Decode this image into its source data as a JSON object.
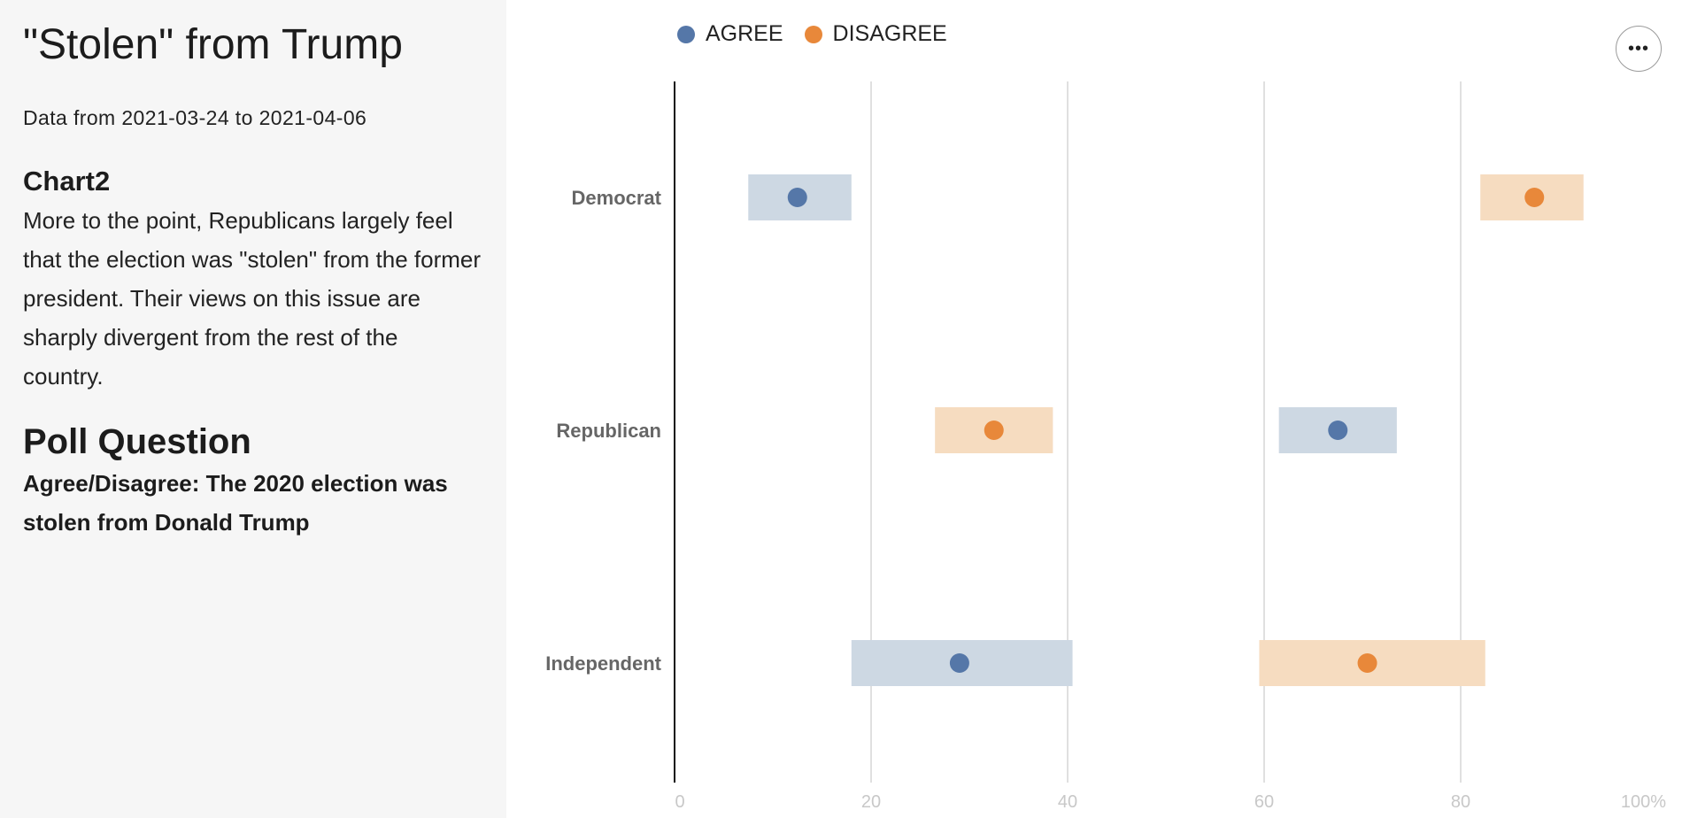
{
  "sidebar": {
    "title": "\"Stolen\" from Trump",
    "date_range": "Data from 2021-03-24 to 2021-04-06",
    "section_heading": "Chart2",
    "description": "More to the point, Republicans largely feel that the election was \"stolen\" from the former president. Their views on this issue are sharply divergent from the rest of the country.",
    "poll_heading": "Poll Question",
    "poll_question": "Agree/Disagree: The 2020 election was stolen from Donald Trump"
  },
  "toolbar": {
    "more_icon": "ellipsis-icon",
    "more_label": "•••"
  },
  "colors": {
    "agree": "#5577a8",
    "agree_band": "#cdd8e3",
    "disagree": "#e8883a",
    "disagree_band": "#f6dcc0",
    "gridline": "#d6d6d6",
    "axis": "#111111"
  },
  "chart_data": {
    "type": "scatter",
    "categories": [
      "Democrat",
      "Republican",
      "Independent"
    ],
    "xlim": [
      0,
      100
    ],
    "x_ticks": [
      "0",
      "20",
      "40",
      "60",
      "80",
      "100%"
    ],
    "x_tick_values": [
      0,
      20,
      40,
      60,
      80,
      100
    ],
    "legend": [
      "AGREE",
      "DISAGREE"
    ],
    "legend_position": "top-left",
    "grid": true,
    "series": [
      {
        "name": "AGREE",
        "values": [
          12.5,
          67.5,
          29
        ],
        "ranges": [
          [
            7.5,
            18
          ],
          [
            61.5,
            73.5
          ],
          [
            18,
            40.5
          ]
        ]
      },
      {
        "name": "DISAGREE",
        "values": [
          87.5,
          32.5,
          70.5
        ],
        "ranges": [
          [
            82,
            92.5
          ],
          [
            26.5,
            38.5
          ],
          [
            59.5,
            82.5
          ]
        ]
      }
    ]
  }
}
